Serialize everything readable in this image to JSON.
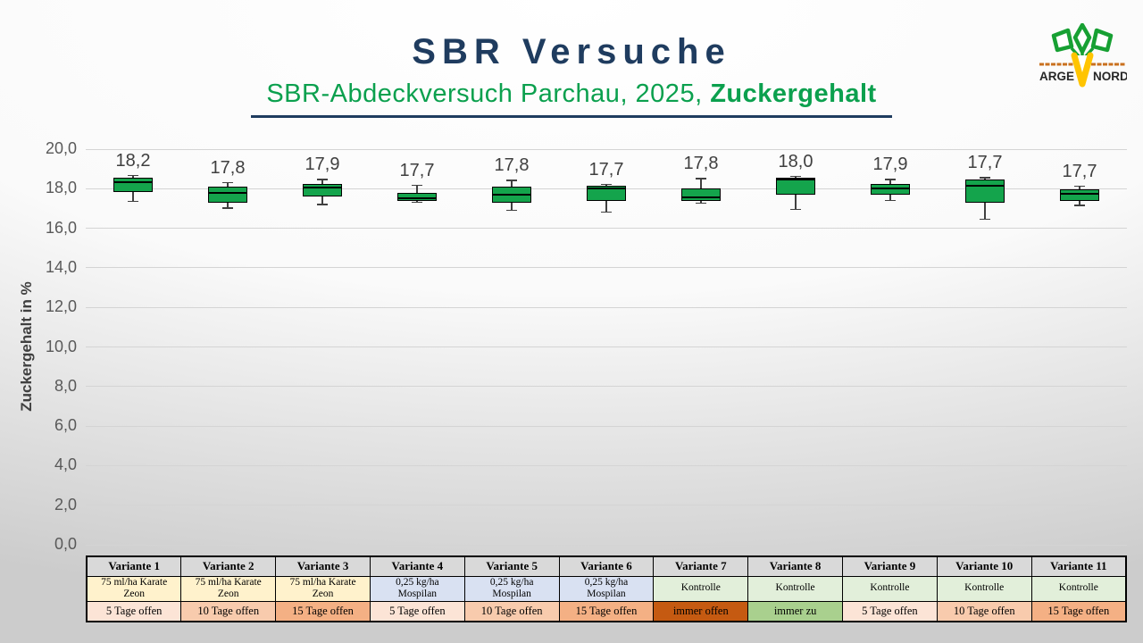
{
  "header": {
    "title": "SBR Versuche",
    "subtitle_prefix": "SBR-Abdeckversuch Parchau, 2025, ",
    "subtitle_emphasis": "Zuckergehalt"
  },
  "logo": {
    "text_left": "ARGE",
    "text_right": "NORD"
  },
  "colors": {
    "title_color": "#1F3C5F",
    "subtitle_color": "#0BA04E",
    "underline_color": "#1F3C5F",
    "box_fill": "#14A44C",
    "box_border": "#000000",
    "whisker_color": "#404040",
    "gridline_color": "#D4D4D4",
    "tick_label_color": "#595959",
    "data_label_color": "#3F3F3F",
    "axis_title_color": "#404040",
    "table_header_bg": "#D9D9D9"
  },
  "chart_data": {
    "type": "boxplot",
    "title": "SBR Versuche - SBR-Abdeckversuch Parchau, 2025, Zuckergehalt",
    "ylabel": "Zuckergehalt in %",
    "ylim": [
      0,
      20
    ],
    "ytick_step": 2,
    "grid": true,
    "legend": false,
    "yticks": [
      {
        "label": "20,0",
        "value": 20
      },
      {
        "label": "18,0",
        "value": 18
      },
      {
        "label": "16,0",
        "value": 16
      },
      {
        "label": "14,0",
        "value": 14
      },
      {
        "label": "12,0",
        "value": 12
      },
      {
        "label": "10,0",
        "value": 10
      },
      {
        "label": "8,0",
        "value": 8
      },
      {
        "label": "6,0",
        "value": 6
      },
      {
        "label": "4,0",
        "value": 4
      },
      {
        "label": "2,0",
        "value": 2
      },
      {
        "label": "0,0",
        "value": 0
      }
    ],
    "categories": [
      "Variante 1",
      "Variante 2",
      "Variante 3",
      "Variante 4",
      "Variante 5",
      "Variante 6",
      "Variante 7",
      "Variante 8",
      "Variante 9",
      "Variante 10",
      "Variante 11"
    ],
    "series": [
      {
        "category": "Variante 1",
        "mean_label": "18,2",
        "mean": 18.2,
        "min": 17.35,
        "q1": 17.85,
        "median": 18.35,
        "q3": 18.55,
        "max": 18.7
      },
      {
        "category": "Variante 2",
        "mean_label": "17,8",
        "mean": 17.8,
        "min": 17.0,
        "q1": 17.3,
        "median": 17.8,
        "q3": 18.1,
        "max": 18.35
      },
      {
        "category": "Variante 3",
        "mean_label": "17,9",
        "mean": 17.9,
        "min": 17.2,
        "q1": 17.6,
        "median": 18.05,
        "q3": 18.25,
        "max": 18.5
      },
      {
        "category": "Variante 4",
        "mean_label": "17,7",
        "mean": 17.7,
        "min": 17.3,
        "q1": 17.4,
        "median": 17.5,
        "q3": 17.8,
        "max": 18.2
      },
      {
        "category": "Variante 5",
        "mean_label": "17,8",
        "mean": 17.8,
        "min": 16.9,
        "q1": 17.3,
        "median": 17.7,
        "q3": 18.1,
        "max": 18.45
      },
      {
        "category": "Variante 6",
        "mean_label": "17,7",
        "mean": 17.7,
        "min": 16.8,
        "q1": 17.4,
        "median": 18.0,
        "q3": 18.15,
        "max": 18.25
      },
      {
        "category": "Variante 7",
        "mean_label": "17,8",
        "mean": 17.8,
        "min": 17.25,
        "q1": 17.4,
        "median": 17.55,
        "q3": 18.0,
        "max": 18.55
      },
      {
        "category": "Variante 8",
        "mean_label": "18,0",
        "mean": 18.0,
        "min": 16.95,
        "q1": 17.7,
        "median": 18.45,
        "q3": 18.55,
        "max": 18.65
      },
      {
        "category": "Variante 9",
        "mean_label": "17,9",
        "mean": 17.9,
        "min": 17.4,
        "q1": 17.7,
        "median": 18.0,
        "q3": 18.25,
        "max": 18.5
      },
      {
        "category": "Variante 10",
        "mean_label": "17,7",
        "mean": 17.7,
        "min": 16.45,
        "q1": 17.3,
        "median": 18.15,
        "q3": 18.45,
        "max": 18.6
      },
      {
        "category": "Variante 11",
        "mean_label": "17,7",
        "mean": 17.7,
        "min": 17.15,
        "q1": 17.4,
        "median": 17.75,
        "q3": 17.95,
        "max": 18.15
      }
    ]
  },
  "table": {
    "header_row": [
      "Variante 1",
      "Variante 2",
      "Variante 3",
      "Variante 4",
      "Variante 5",
      "Variante 6",
      "Variante 7",
      "Variante 8",
      "Variante 9",
      "Variante 10",
      "Variante 11"
    ],
    "treatment_row": [
      {
        "lines": [
          "75 ml/ha Karate",
          "Zeon"
        ],
        "bg": "#FFF2CC"
      },
      {
        "lines": [
          "75 ml/ha Karate",
          "Zeon"
        ],
        "bg": "#FFF2CC"
      },
      {
        "lines": [
          "75 ml/ha Karate",
          "Zeon"
        ],
        "bg": "#FFF2CC"
      },
      {
        "lines": [
          "0,25 kg/ha",
          "Mospilan"
        ],
        "bg": "#D9E1F2"
      },
      {
        "lines": [
          "0,25 kg/ha",
          "Mospilan"
        ],
        "bg": "#D9E1F2"
      },
      {
        "lines": [
          "0,25 kg/ha",
          "Mospilan"
        ],
        "bg": "#D9E1F2"
      },
      {
        "lines": [
          "Kontrolle"
        ],
        "bg": "#E2EFDA"
      },
      {
        "lines": [
          "Kontrolle"
        ],
        "bg": "#E2EFDA"
      },
      {
        "lines": [
          "Kontrolle"
        ],
        "bg": "#E2EFDA"
      },
      {
        "lines": [
          "Kontrolle"
        ],
        "bg": "#E2EFDA"
      },
      {
        "lines": [
          "Kontrolle"
        ],
        "bg": "#E2EFDA"
      }
    ],
    "schedule_row": [
      {
        "text": "5 Tage offen",
        "bg": "#FCE4D6"
      },
      {
        "text": "10 Tage offen",
        "bg": "#F8CBAD"
      },
      {
        "text": "15 Tage offen",
        "bg": "#F4B084"
      },
      {
        "text": "5 Tage offen",
        "bg": "#FCE4D6"
      },
      {
        "text": "10 Tage offen",
        "bg": "#F8CBAD"
      },
      {
        "text": "15 Tage offen",
        "bg": "#F4B084"
      },
      {
        "text": "immer offen",
        "bg": "#C55A11"
      },
      {
        "text": "immer zu",
        "bg": "#A9D08E"
      },
      {
        "text": "5 Tage offen",
        "bg": "#FCE4D6"
      },
      {
        "text": "10 Tage offen",
        "bg": "#F8CBAD"
      },
      {
        "text": "15 Tage offen",
        "bg": "#F4B084"
      }
    ]
  }
}
